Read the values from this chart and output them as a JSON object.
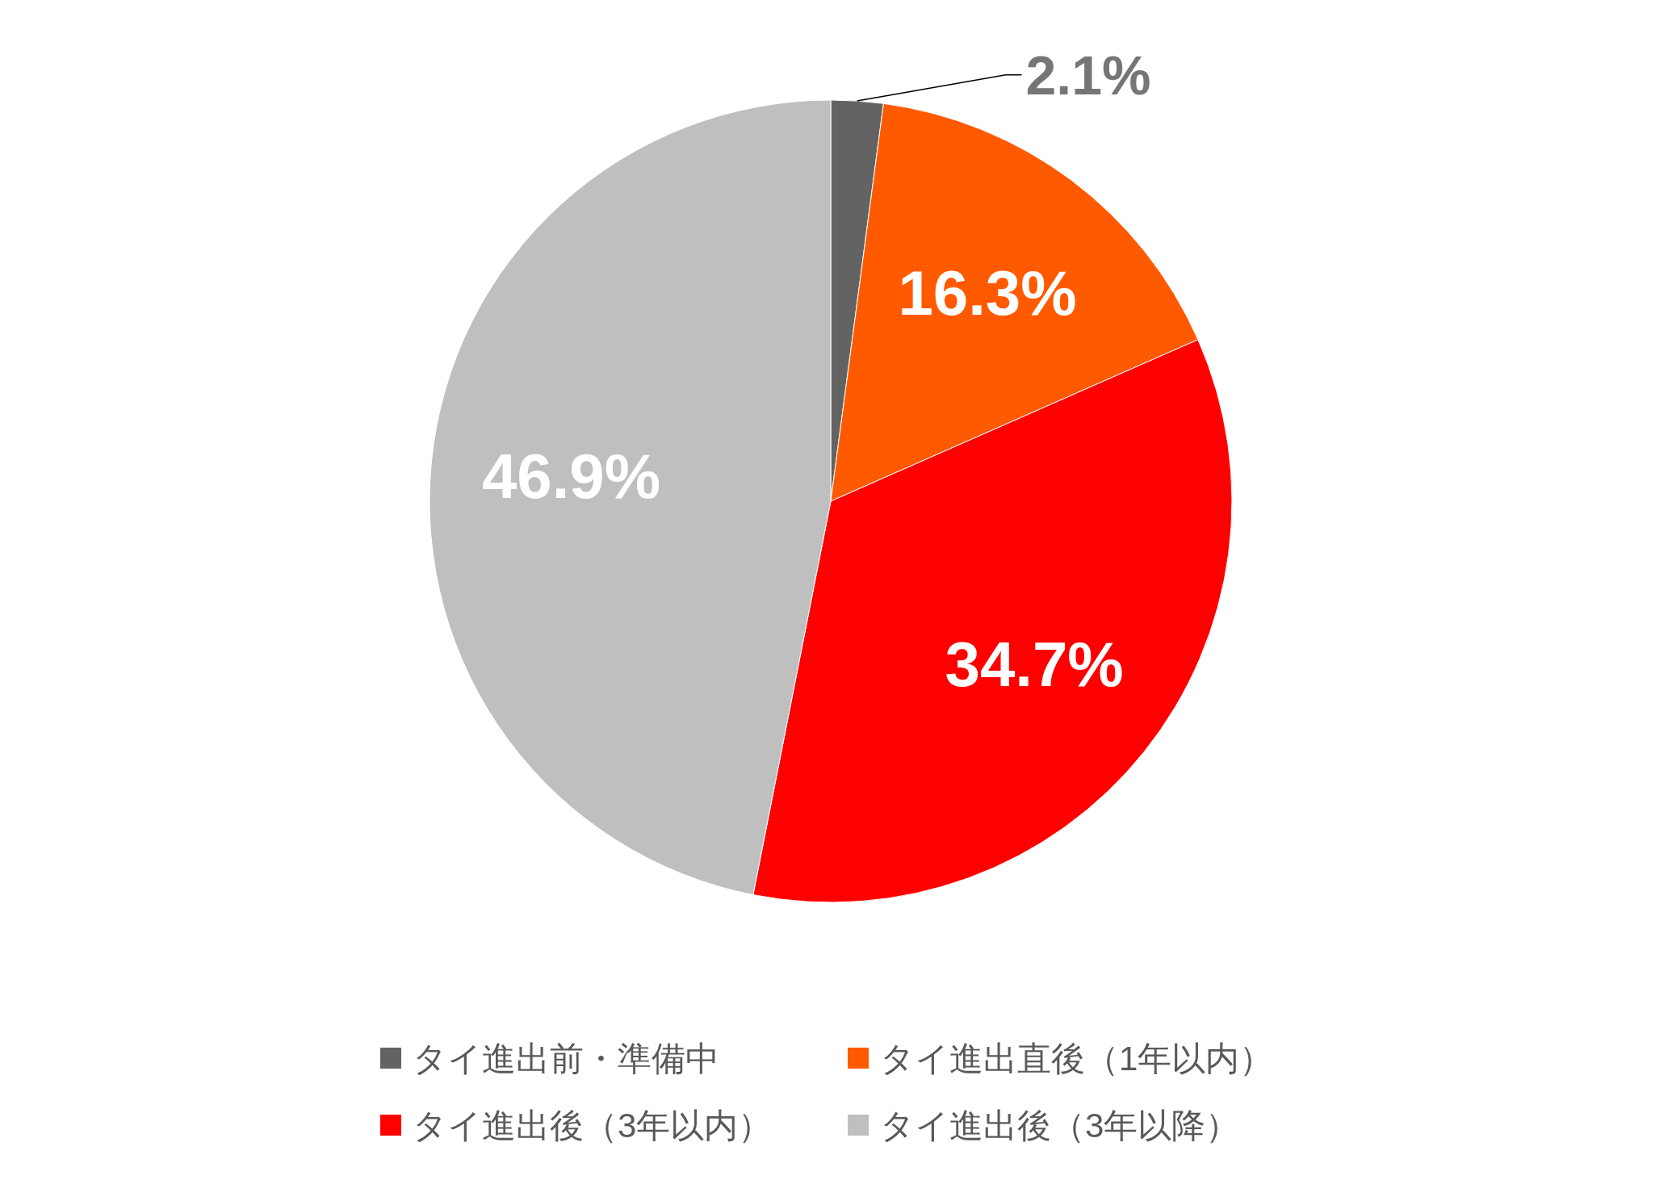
{
  "chart_data": {
    "type": "pie",
    "categories": [
      "タイ進出前・準備中",
      "タイ進出直後（1年以内）",
      "タイ進出後（3年以内）",
      "タイ進出後（3年以降）"
    ],
    "values": [
      2.1,
      16.3,
      34.7,
      46.9
    ],
    "value_labels": [
      "2.1%",
      "16.3%",
      "34.7%",
      "46.9%"
    ],
    "colors": [
      "#636363",
      "#ff5a00",
      "#ff0000",
      "#bfbfbf"
    ],
    "legend": "bottom"
  }
}
